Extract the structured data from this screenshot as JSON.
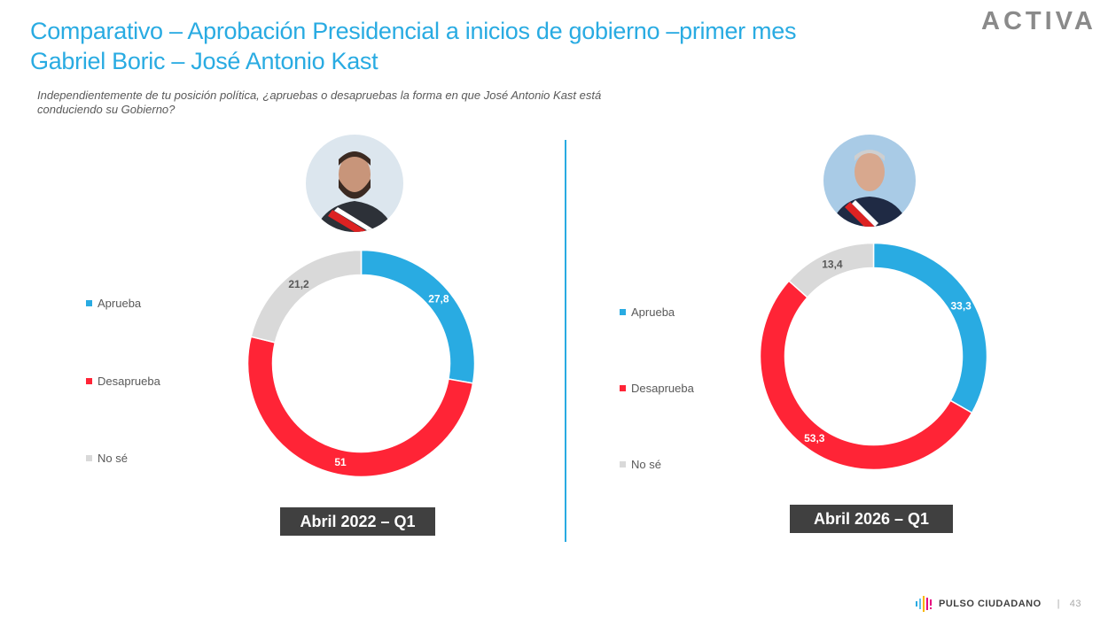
{
  "header": {
    "title_line1": "Comparativo – Aprobación Presidencial a inicios de gobierno –primer mes",
    "title_line2": "Gabriel Boric – José Antonio Kast",
    "question": "Independientemente de tu posición política, ¿apruebas o desapruebas la forma en que José Antonio Kast está conduciendo su Gobierno?",
    "logo": "ACTIVA"
  },
  "colors": {
    "Aprueba": "#29abe2",
    "Desaprueba": "#ff2436",
    "No sé": "#d9d9d9"
  },
  "chart_data": [
    {
      "type": "pie",
      "variant": "donut",
      "title": "Abril 2022 – Q1",
      "categories": [
        "Aprueba",
        "Desaprueba",
        "No sé"
      ],
      "values": [
        27.8,
        51,
        21.2
      ],
      "labels": [
        "27,8",
        "51",
        "21,2"
      ],
      "legend_placement": "left"
    },
    {
      "type": "pie",
      "variant": "donut",
      "title": "Abril 2026 – Q1",
      "categories": [
        "Aprueba",
        "Desaprueba",
        "No sé"
      ],
      "values": [
        33.3,
        53.3,
        13.4
      ],
      "labels": [
        "33,3",
        "53,3",
        "13,4"
      ],
      "legend_placement": "left"
    }
  ],
  "footer": {
    "brand": "PULSO CIUDADANO",
    "page": "43"
  }
}
